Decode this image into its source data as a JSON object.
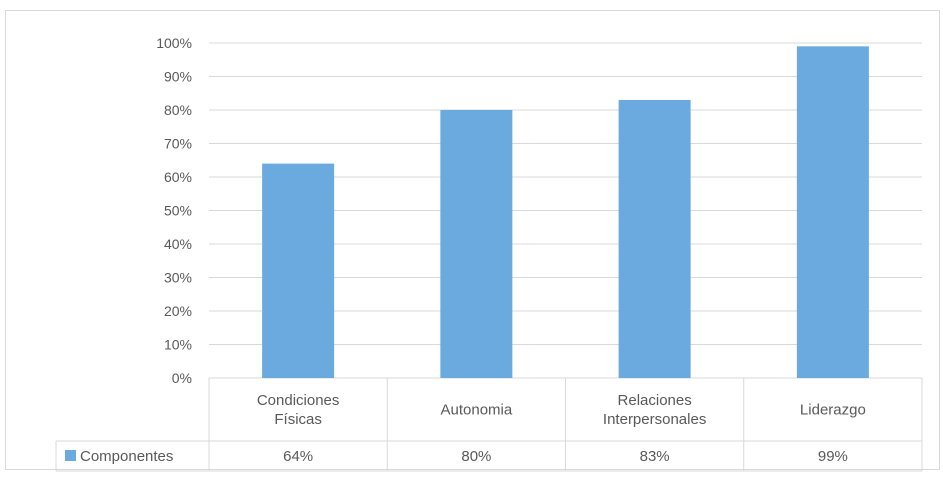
{
  "chart_data": {
    "type": "bar",
    "title": "",
    "xlabel": "",
    "ylabel": "",
    "categories": [
      [
        "Condiciones",
        "Físicas"
      ],
      [
        "Autonomia"
      ],
      [
        "Relaciones",
        "Interpersonales"
      ],
      [
        "Liderazgo"
      ]
    ],
    "series": [
      {
        "name": "Componentes",
        "values": [
          64,
          80,
          83,
          99
        ],
        "labels": [
          "64%",
          "80%",
          "83%",
          "99%"
        ],
        "color": "#6aaade"
      }
    ],
    "ylim": [
      0,
      100
    ],
    "yticks": [
      "0%",
      "10%",
      "20%",
      "30%",
      "40%",
      "50%",
      "60%",
      "70%",
      "80%",
      "90%",
      "100%"
    ],
    "grid": true,
    "legend": "data-table-left",
    "colors": {
      "gridline": "#d9d9d9",
      "text": "#595959",
      "bar": "#6aaade"
    }
  }
}
